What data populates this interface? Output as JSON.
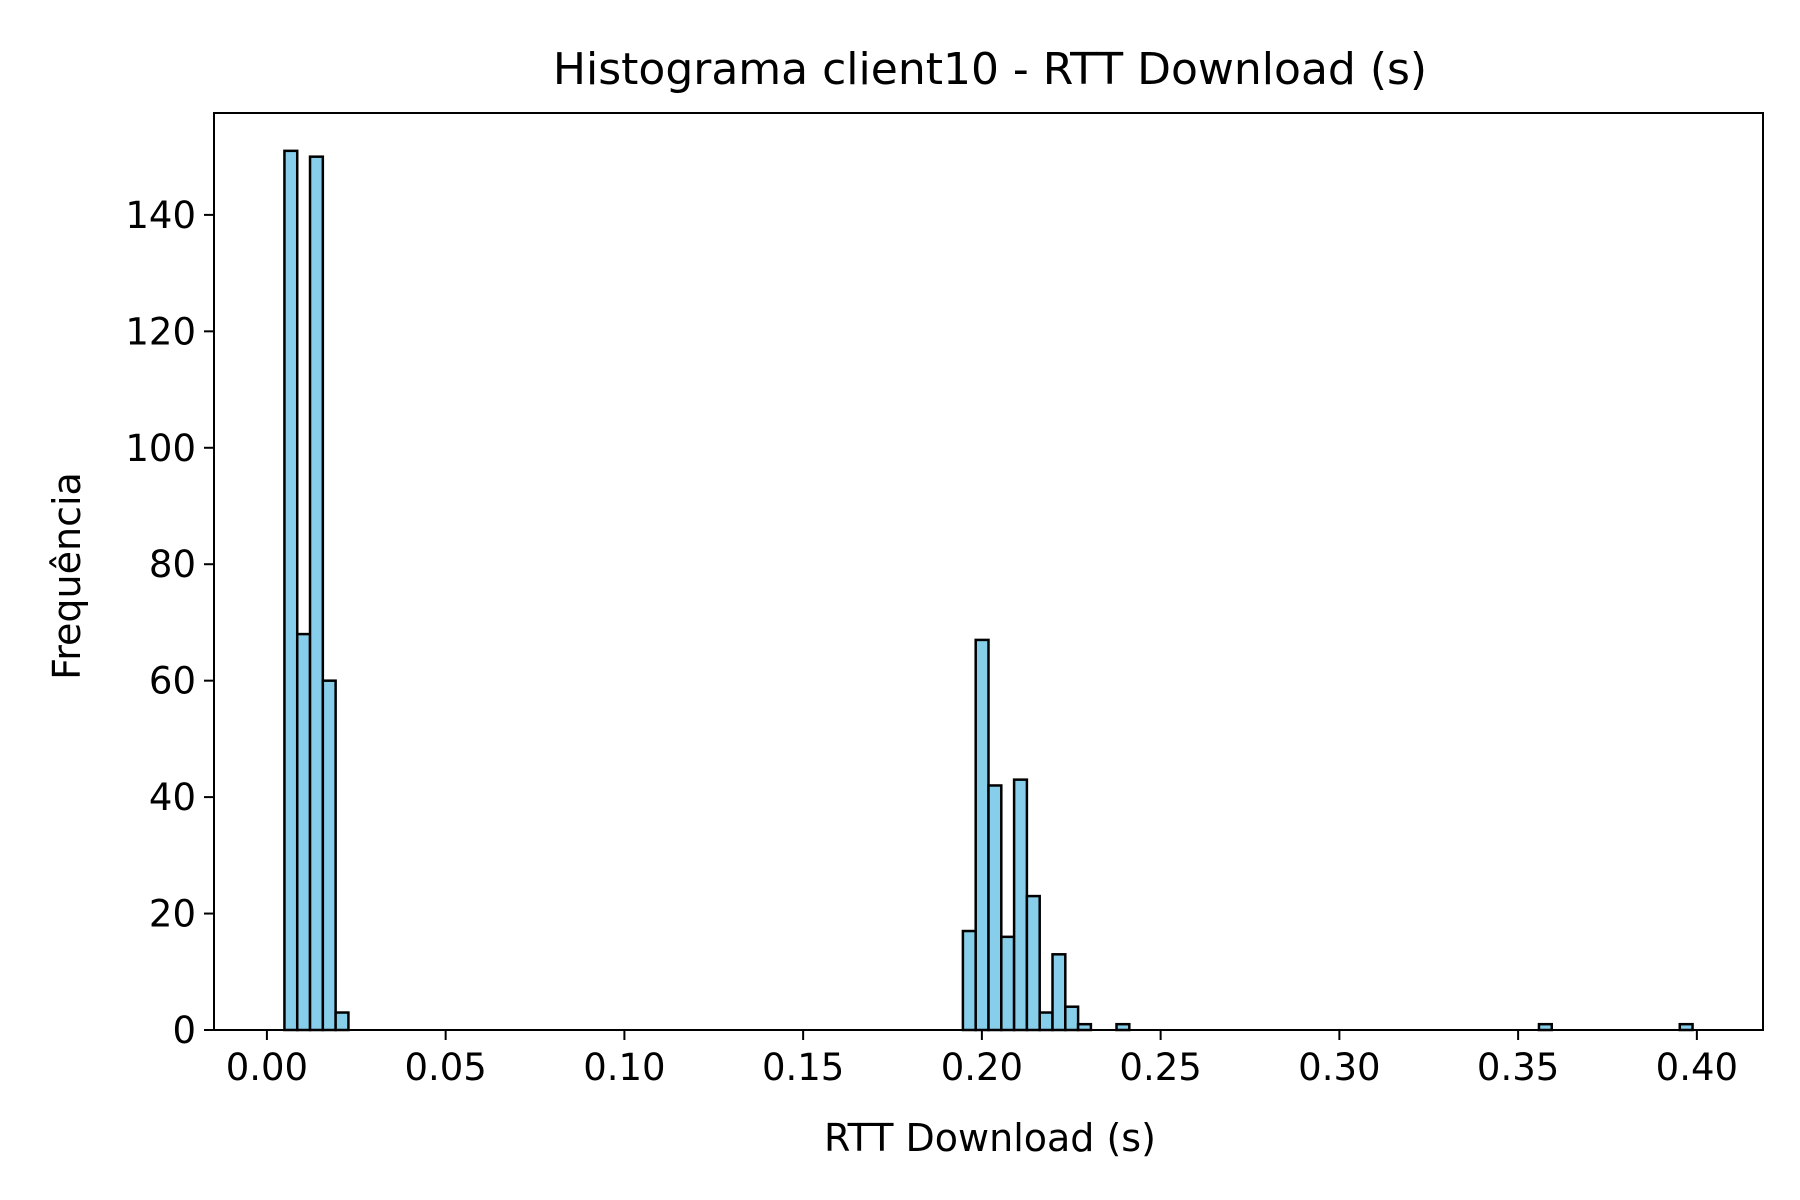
{
  "chart_data": {
    "type": "bar",
    "title": "Histograma client10 - RTT Download (s)",
    "xlabel": "RTT Download (s)",
    "ylabel": "Frequência",
    "xlim": [
      -0.0148,
      0.4185
    ],
    "ylim": [
      0,
      157.5
    ],
    "grid": false,
    "legend": "none",
    "colors": {
      "bar_fill": "#87ceeb",
      "bar_edge": "#000000",
      "axis": "#000000"
    },
    "xticks": [
      {
        "value": 0.0,
        "label": "0.00"
      },
      {
        "value": 0.05,
        "label": "0.05"
      },
      {
        "value": 0.1,
        "label": "0.10"
      },
      {
        "value": 0.15,
        "label": "0.15"
      },
      {
        "value": 0.2,
        "label": "0.20"
      },
      {
        "value": 0.25,
        "label": "0.25"
      },
      {
        "value": 0.3,
        "label": "0.30"
      },
      {
        "value": 0.35,
        "label": "0.35"
      },
      {
        "value": 0.4,
        "label": "0.40"
      }
    ],
    "yticks": [
      {
        "value": 0,
        "label": "0"
      },
      {
        "value": 20,
        "label": "20"
      },
      {
        "value": 40,
        "label": "40"
      },
      {
        "value": 60,
        "label": "60"
      },
      {
        "value": 80,
        "label": "80"
      },
      {
        "value": 100,
        "label": "100"
      },
      {
        "value": 120,
        "label": "120"
      },
      {
        "value": 140,
        "label": "140"
      }
    ],
    "bin_range": [
      0.0049,
      0.3988
    ],
    "counts": [
      151,
      68,
      150,
      60,
      3,
      0,
      0,
      0,
      0,
      0,
      0,
      0,
      0,
      0,
      0,
      0,
      0,
      0,
      0,
      0,
      0,
      0,
      0,
      0,
      0,
      0,
      0,
      0,
      0,
      0,
      0,
      0,
      0,
      0,
      0,
      0,
      0,
      0,
      0,
      0,
      0,
      0,
      0,
      0,
      0,
      0,
      0,
      0,
      0,
      0,
      0,
      0,
      0,
      17,
      67,
      42,
      16,
      43,
      23,
      3,
      13,
      4,
      1,
      0,
      0,
      1,
      0,
      0,
      0,
      0,
      0,
      0,
      0,
      0,
      0,
      0,
      0,
      0,
      0,
      0,
      0,
      0,
      0,
      0,
      0,
      0,
      0,
      0,
      0,
      0,
      0,
      0,
      0,
      0,
      0,
      0,
      0,
      0,
      1,
      0,
      0,
      0,
      0,
      0,
      0,
      0,
      0,
      0,
      0,
      1
    ]
  }
}
